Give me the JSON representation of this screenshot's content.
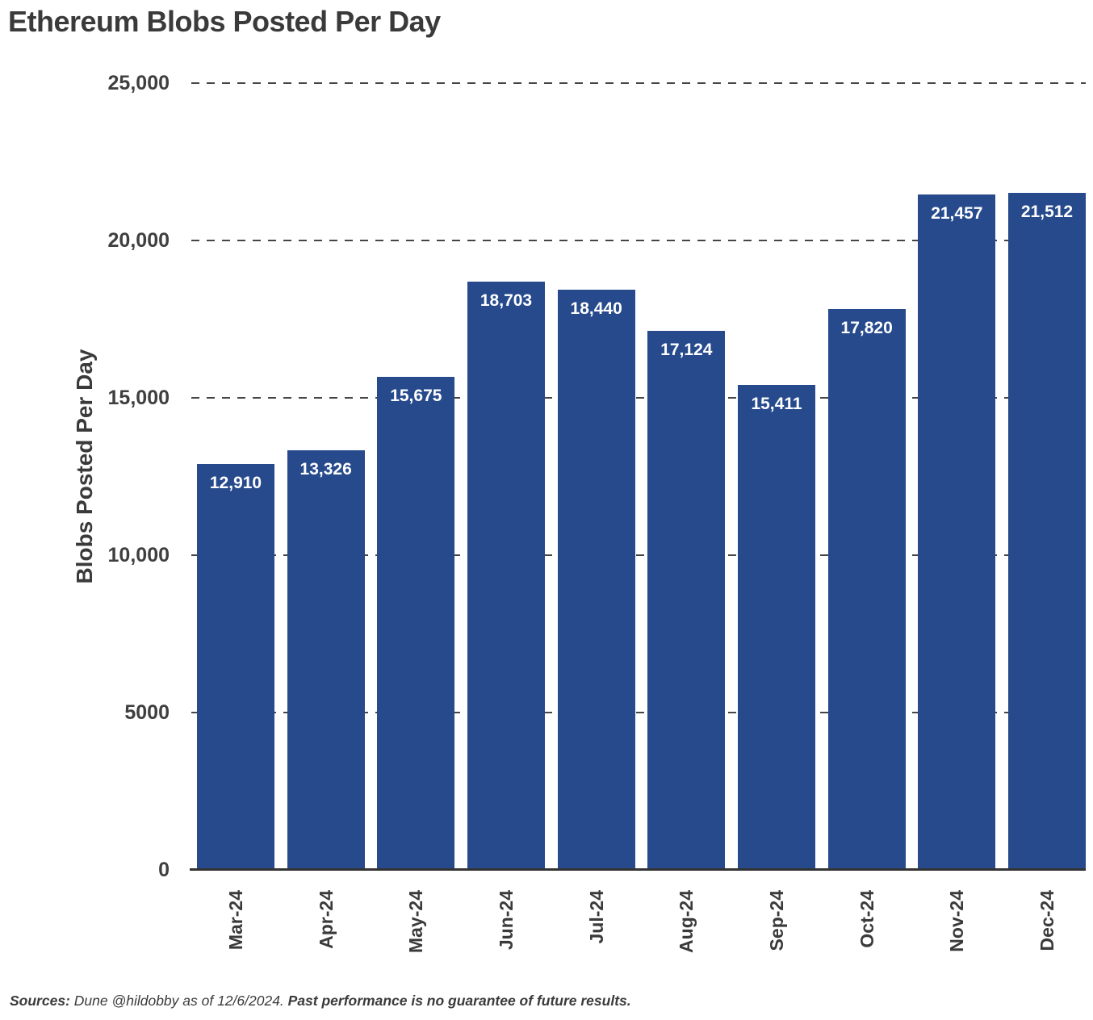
{
  "page_title": "Ethereum Blobs Posted Per Day",
  "chart_data": {
    "type": "bar",
    "title": "Ethereum Blobs Posted Per Day",
    "xlabel": "",
    "ylabel": "Blobs Posted Per Day",
    "categories": [
      "Mar-24",
      "Apr-24",
      "May-24",
      "Jun-24",
      "Jul-24",
      "Aug-24",
      "Sep-24",
      "Oct-24",
      "Nov-24",
      "Dec-24"
    ],
    "values": [
      12910,
      13326,
      15675,
      18703,
      18440,
      17124,
      15411,
      17820,
      21457,
      21512
    ],
    "value_labels": [
      "12,910",
      "13,326",
      "15,675",
      "18,703",
      "18,440",
      "17,124",
      "15,411",
      "17,820",
      "21,457",
      "21,512"
    ],
    "ylim": [
      0,
      25000
    ],
    "yticks": [
      {
        "value": 0,
        "label": "0"
      },
      {
        "value": 5000,
        "label": "5000"
      },
      {
        "value": 10000,
        "label": "10,000"
      },
      {
        "value": 15000,
        "label": "15,000"
      },
      {
        "value": 20000,
        "label": "20,000"
      },
      {
        "value": 25000,
        "label": "25,000"
      }
    ],
    "grid": "horizontal-dashed",
    "legend_position": "none",
    "bar_color": "#264a8c",
    "bar_label_color": "#ffffff"
  },
  "footer": {
    "sources_label": "Sources:",
    "sources_body": " Dune @hildobby as of 12/6/2024. ",
    "disclaimer": "Past performance is no guarantee of future results."
  },
  "colors": {
    "background": "#ffffff",
    "text": "#3a3a3a",
    "grid": "#454545",
    "axis": "#333333"
  }
}
